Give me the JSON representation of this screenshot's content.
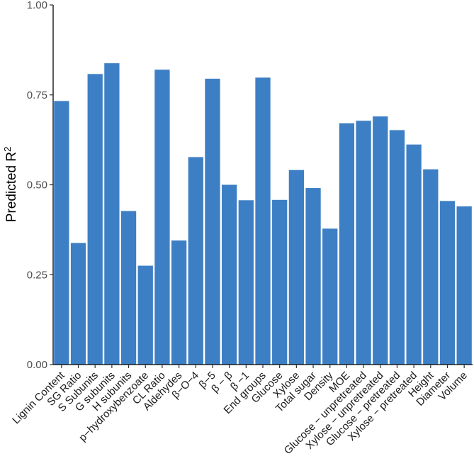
{
  "chart_data": {
    "type": "bar",
    "title": "",
    "xlabel": "",
    "ylabel": "Predicted R",
    "ylabel_superscript": "2",
    "ylim": [
      0,
      1
    ],
    "yticks": [
      "0.00",
      "0.25",
      "0.50",
      "0.75",
      "1.00"
    ],
    "bar_color": "#3d7fc4",
    "categories": [
      "Lignin Content",
      "SG Ratio",
      "S Subunits",
      "G subunits",
      "H subunits",
      "p−hydroxybenzoate",
      "CL Ratio",
      "Aldehydes",
      "β−O−4",
      "β−5",
      "β − β",
      "β −1",
      "End groups",
      "Glucose",
      "Xylose",
      "Total sugar",
      "Density",
      "MOE",
      "Glucose − unpretreated",
      "Xylose − unpretreated",
      "Glucose − pretreated",
      "Xylose − pretreated",
      "Height",
      "Diameter",
      "Volume"
    ],
    "values": [
      0.733,
      0.338,
      0.808,
      0.838,
      0.427,
      0.275,
      0.82,
      0.345,
      0.577,
      0.795,
      0.5,
      0.457,
      0.798,
      0.458,
      0.541,
      0.491,
      0.378,
      0.671,
      0.678,
      0.69,
      0.652,
      0.612,
      0.543,
      0.455,
      0.44
    ]
  }
}
